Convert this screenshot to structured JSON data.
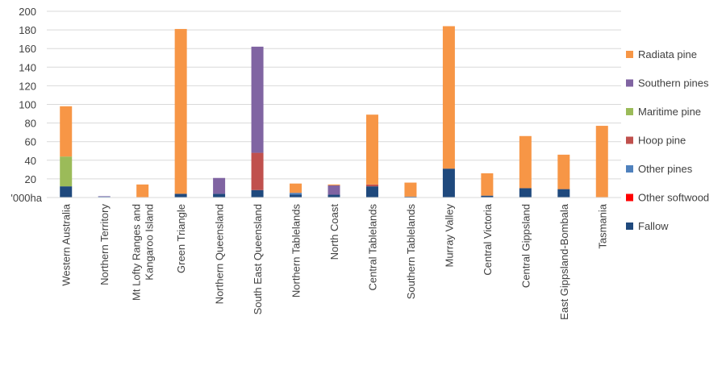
{
  "chart_data": {
    "type": "bar",
    "stacked": true,
    "y_unit_label": "'000ha",
    "ylim": [
      0,
      200
    ],
    "yticks": [
      20,
      40,
      60,
      80,
      100,
      120,
      140,
      160,
      180,
      200
    ],
    "grid": true,
    "legend_position": "right",
    "categories": [
      "Western Australia",
      "Northern Territory",
      "Mt Lofty Ranges and Kangaroo Island",
      "Green Triangle",
      "Northern Queensland",
      "South East Queensland",
      "Northern Tablelands",
      "North Coast",
      "Central Tablelands",
      "Southern Tablelands",
      "Murray Valley",
      "Central Victoria",
      "Central Gippsland",
      "East Gippsland-Bombala",
      "Tasmania"
    ],
    "category_lines": [
      [
        "Western Australia"
      ],
      [
        "Northern Territory"
      ],
      [
        "Mt Lofty Ranges and",
        "Kangaroo Island"
      ],
      [
        "Green Triangle"
      ],
      [
        "Northern Queensland"
      ],
      [
        "South East Queensland"
      ],
      [
        "Northern Tablelands"
      ],
      [
        "North Coast"
      ],
      [
        "Central Tablelands"
      ],
      [
        "Southern Tablelands"
      ],
      [
        "Murray Valley"
      ],
      [
        "Central Victoria"
      ],
      [
        "Central Gippsland"
      ],
      [
        "East Gippsland-Bombala"
      ],
      [
        "Tasmania"
      ]
    ],
    "series": [
      {
        "name": "Fallow",
        "color": "#1f497d",
        "values": [
          12,
          0.5,
          0,
          4,
          4,
          8,
          3,
          3,
          12,
          1,
          31,
          2,
          10,
          9,
          0
        ]
      },
      {
        "name": "Other softwood",
        "color": "#ff0000",
        "values": [
          0,
          0,
          0,
          0,
          0,
          0,
          0,
          0,
          0,
          0,
          0,
          0,
          0,
          0,
          0
        ]
      },
      {
        "name": "Other pines",
        "color": "#4f81bd",
        "values": [
          0,
          0.5,
          0,
          0,
          0,
          0,
          2,
          0,
          0,
          0,
          0,
          0,
          0,
          0,
          0
        ]
      },
      {
        "name": "Hoop pine",
        "color": "#c0504d",
        "values": [
          0,
          0,
          0,
          0,
          0,
          40,
          0,
          0,
          2,
          0,
          0,
          0,
          0,
          0,
          0
        ]
      },
      {
        "name": "Maritime pine",
        "color": "#9bbb59",
        "values": [
          32,
          0,
          0,
          0,
          0,
          0,
          0,
          0,
          0,
          0,
          0,
          0,
          0,
          0,
          0
        ]
      },
      {
        "name": "Southern pines",
        "color": "#8064a2",
        "values": [
          0,
          0.5,
          0,
          0,
          17,
          114,
          0,
          10,
          0,
          0,
          0,
          0,
          0,
          0,
          0
        ]
      },
      {
        "name": "Radiata pine",
        "color": "#f79646",
        "values": [
          54,
          0,
          14,
          177,
          0,
          0,
          10,
          1,
          75,
          15,
          153,
          24,
          56,
          37,
          77
        ]
      }
    ],
    "legend_order": [
      "Radiata pine",
      "Southern pines",
      "Maritime pine",
      "Hoop pine",
      "Other pines",
      "Other softwood",
      "Fallow"
    ]
  }
}
